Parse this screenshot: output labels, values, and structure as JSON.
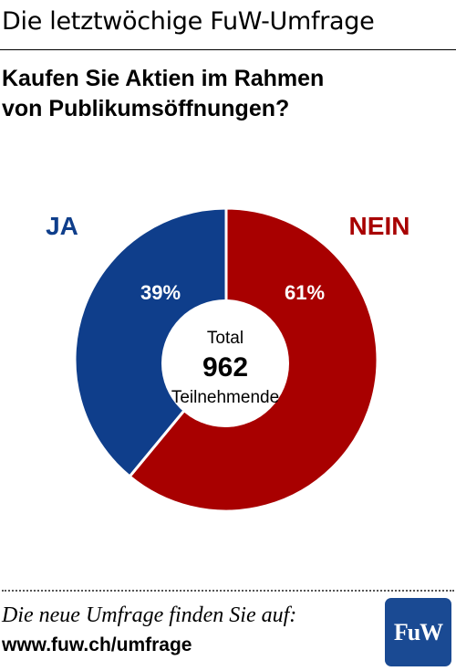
{
  "header": {
    "title": "Die letztwöchige FuW-Umfrage"
  },
  "question": {
    "line1": "Kaufen Sie Aktien im Rahmen",
    "line2": "von Publikumsöffnungen?"
  },
  "chart_data": {
    "type": "pie",
    "title": "",
    "categories": [
      "JA",
      "NEIN"
    ],
    "values": [
      39,
      61
    ],
    "value_labels": [
      "39%",
      "61%"
    ],
    "colors": [
      "#0f3e8b",
      "#a80000"
    ],
    "legend": [
      {
        "label": "JA",
        "color": "#0f3e8b"
      },
      {
        "label": "NEIN",
        "color": "#a80000"
      }
    ],
    "donut": true,
    "center": {
      "line1": "Total",
      "value": "962",
      "line2": "Teilnehmende"
    }
  },
  "footer": {
    "line1": "Die neue Umfrage finden Sie auf:",
    "url": "www.fuw.ch/umfrage",
    "logo_text": "FuW",
    "logo_color": "#1a4a93"
  }
}
